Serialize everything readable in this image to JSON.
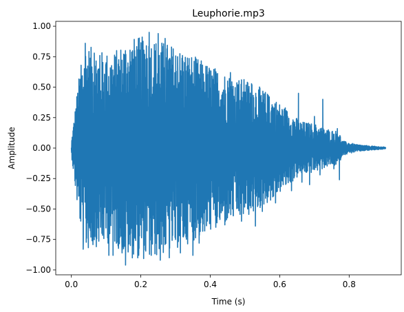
{
  "chart_data": {
    "type": "line",
    "title": "Leuphorie.mp3",
    "xlabel": "Time (s)",
    "ylabel": "Amplitude",
    "xlim": [
      -0.045,
      0.95
    ],
    "ylim": [
      -1.04,
      1.04
    ],
    "xticks": [
      0.0,
      0.2,
      0.4,
      0.6,
      0.8
    ],
    "xtick_labels": [
      "0.0",
      "0.2",
      "0.4",
      "0.6",
      "0.8"
    ],
    "yticks": [
      -1.0,
      -0.75,
      -0.5,
      -0.25,
      0.0,
      0.25,
      0.5,
      0.75,
      1.0
    ],
    "ytick_labels": [
      "−1.00",
      "−0.75",
      "−0.50",
      "−0.25",
      "0.00",
      "0.25",
      "0.50",
      "0.75",
      "1.00"
    ],
    "grid": false,
    "series": [
      {
        "color": "#1f77b4",
        "duration": 0.905,
        "envelope": [
          [
            0.0,
            0.05
          ],
          [
            0.01,
            0.3
          ],
          [
            0.02,
            0.55
          ],
          [
            0.04,
            0.85
          ],
          [
            0.08,
            0.8
          ],
          [
            0.12,
            0.78
          ],
          [
            0.16,
            0.9
          ],
          [
            0.22,
            0.92
          ],
          [
            0.28,
            0.86
          ],
          [
            0.34,
            0.78
          ],
          [
            0.4,
            0.68
          ],
          [
            0.46,
            0.6
          ],
          [
            0.52,
            0.55
          ],
          [
            0.58,
            0.42
          ],
          [
            0.62,
            0.32
          ],
          [
            0.66,
            0.22
          ],
          [
            0.7,
            0.2
          ],
          [
            0.74,
            0.15
          ],
          [
            0.77,
            0.14
          ],
          [
            0.78,
            0.06
          ],
          [
            0.82,
            0.03
          ],
          [
            0.86,
            0.018
          ],
          [
            0.905,
            0.008
          ]
        ],
        "peaks": [
          [
            0.012,
            0.1
          ],
          [
            0.016,
            -0.28
          ],
          [
            0.028,
            0.68
          ],
          [
            0.034,
            -0.83
          ],
          [
            0.04,
            0.86
          ],
          [
            0.044,
            -0.74
          ],
          [
            0.06,
            -0.6
          ],
          [
            0.066,
            0.78
          ],
          [
            0.082,
            0.76
          ],
          [
            0.088,
            -0.7
          ],
          [
            0.1,
            0.7
          ],
          [
            0.108,
            -0.88
          ],
          [
            0.112,
            0.4
          ],
          [
            0.12,
            -0.88
          ],
          [
            0.132,
            0.6
          ],
          [
            0.146,
            -0.86
          ],
          [
            0.15,
            0.52
          ],
          [
            0.156,
            -0.96
          ],
          [
            0.162,
            0.66
          ],
          [
            0.17,
            -0.8
          ],
          [
            0.182,
            0.8
          ],
          [
            0.194,
            -0.88
          ],
          [
            0.2,
            0.62
          ],
          [
            0.208,
            -0.72
          ],
          [
            0.216,
            0.84
          ],
          [
            0.224,
            0.95
          ],
          [
            0.23,
            -0.88
          ],
          [
            0.24,
            -0.7
          ],
          [
            0.25,
            0.94
          ],
          [
            0.256,
            -0.92
          ],
          [
            0.27,
            0.9
          ],
          [
            0.278,
            0.64
          ],
          [
            0.282,
            -0.9
          ],
          [
            0.292,
            0.68
          ],
          [
            0.3,
            -0.75
          ],
          [
            0.306,
            0.75
          ],
          [
            0.314,
            -0.86
          ],
          [
            0.32,
            0.76
          ],
          [
            0.328,
            -0.7
          ],
          [
            0.338,
            0.62
          ],
          [
            0.344,
            0.6
          ],
          [
            0.35,
            -0.88
          ],
          [
            0.362,
            0.58
          ],
          [
            0.368,
            -0.78
          ],
          [
            0.376,
            0.32
          ],
          [
            0.384,
            -0.68
          ],
          [
            0.39,
            0.6
          ],
          [
            0.398,
            -0.62
          ],
          [
            0.406,
            0.58
          ],
          [
            0.416,
            -0.65
          ],
          [
            0.424,
            0.36
          ],
          [
            0.434,
            -0.45
          ],
          [
            0.442,
            -0.63
          ],
          [
            0.45,
            0.55
          ],
          [
            0.458,
            0.62
          ],
          [
            0.466,
            -0.55
          ],
          [
            0.48,
            0.52
          ],
          [
            0.49,
            -0.6
          ],
          [
            0.5,
            0.46
          ],
          [
            0.508,
            -0.5
          ],
          [
            0.52,
            0.52
          ],
          [
            0.53,
            -0.64
          ],
          [
            0.54,
            0.4
          ],
          [
            0.55,
            -0.52
          ],
          [
            0.57,
            0.42
          ],
          [
            0.58,
            -0.4
          ],
          [
            0.588,
            -0.45
          ],
          [
            0.596,
            0.3
          ],
          [
            0.616,
            0.33
          ],
          [
            0.624,
            -0.25
          ],
          [
            0.634,
            -0.35
          ],
          [
            0.654,
            0.45
          ],
          [
            0.664,
            -0.28
          ],
          [
            0.676,
            0.18
          ],
          [
            0.686,
            -0.3
          ],
          [
            0.7,
            0.26
          ],
          [
            0.716,
            -0.22
          ],
          [
            0.724,
            0.4
          ],
          [
            0.74,
            0.15
          ],
          [
            0.756,
            -0.17
          ],
          [
            0.766,
            0.16
          ],
          [
            0.772,
            -0.26
          ]
        ]
      }
    ]
  }
}
